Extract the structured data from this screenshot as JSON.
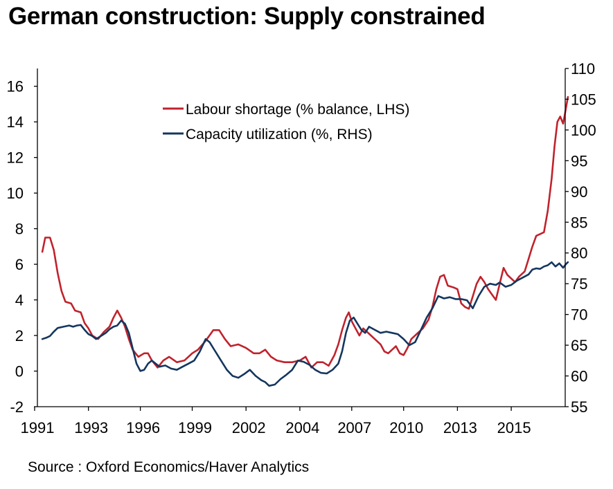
{
  "title": "German construction: Supply constrained",
  "source": "Source : Oxford Economics/Haver Analytics",
  "colors": {
    "labour": "#C0222C",
    "capacity": "#14365E",
    "axis": "#000000"
  },
  "chart_data": {
    "type": "line",
    "title": "German construction: Supply constrained",
    "grid": false,
    "legend_position": "top-center",
    "x_range": [
      1991.0,
      2018.5
    ],
    "x_tick_labels": [
      "1991",
      "1993",
      "1996",
      "1999",
      "2002",
      "2004",
      "2007",
      "2010",
      "2013",
      "2015"
    ],
    "x_tick_values": [
      1991.0,
      1993.8,
      1996.5,
      1999.2,
      2002.0,
      2004.8,
      2007.5,
      2010.2,
      2013.0,
      2015.8
    ],
    "y_left": {
      "range": [
        -2,
        17
      ],
      "ticks": [
        -2,
        0,
        2,
        4,
        6,
        8,
        10,
        12,
        14,
        16
      ]
    },
    "y_right": {
      "range": [
        55,
        110
      ],
      "ticks": [
        55,
        60,
        65,
        70,
        75,
        80,
        85,
        90,
        95,
        100,
        105,
        110
      ]
    },
    "series": [
      {
        "name": "Labour shortage (% balance, LHS)",
        "axis": "left",
        "points": [
          [
            1991.4,
            6.7
          ],
          [
            1991.55,
            7.5
          ],
          [
            1991.8,
            7.5
          ],
          [
            1992.0,
            6.8
          ],
          [
            1992.2,
            5.5
          ],
          [
            1992.4,
            4.5
          ],
          [
            1992.6,
            3.9
          ],
          [
            1992.9,
            3.8
          ],
          [
            1993.1,
            3.4
          ],
          [
            1993.4,
            3.3
          ],
          [
            1993.6,
            2.7
          ],
          [
            1993.8,
            2.4
          ],
          [
            1994.0,
            2.0
          ],
          [
            1994.3,
            1.8
          ],
          [
            1994.6,
            2.2
          ],
          [
            1994.9,
            2.5
          ],
          [
            1995.1,
            3.0
          ],
          [
            1995.3,
            3.4
          ],
          [
            1995.5,
            3.0
          ],
          [
            1995.7,
            2.5
          ],
          [
            1995.9,
            1.8
          ],
          [
            1996.1,
            1.2
          ],
          [
            1996.4,
            0.8
          ],
          [
            1996.7,
            1.0
          ],
          [
            1996.9,
            1.0
          ],
          [
            1997.1,
            0.6
          ],
          [
            1997.4,
            0.2
          ],
          [
            1997.7,
            0.6
          ],
          [
            1998.0,
            0.8
          ],
          [
            1998.4,
            0.5
          ],
          [
            1998.8,
            0.6
          ],
          [
            1999.2,
            1.0
          ],
          [
            1999.5,
            1.2
          ],
          [
            1999.9,
            1.7
          ],
          [
            2000.3,
            2.3
          ],
          [
            2000.6,
            2.3
          ],
          [
            2000.9,
            1.8
          ],
          [
            2001.2,
            1.4
          ],
          [
            2001.6,
            1.5
          ],
          [
            2002.0,
            1.3
          ],
          [
            2002.4,
            1.0
          ],
          [
            2002.7,
            1.0
          ],
          [
            2003.0,
            1.2
          ],
          [
            2003.3,
            0.8
          ],
          [
            2003.6,
            0.6
          ],
          [
            2004.0,
            0.5
          ],
          [
            2004.4,
            0.5
          ],
          [
            2004.8,
            0.6
          ],
          [
            2005.1,
            0.8
          ],
          [
            2005.4,
            0.2
          ],
          [
            2005.7,
            0.5
          ],
          [
            2006.0,
            0.5
          ],
          [
            2006.3,
            0.3
          ],
          [
            2006.6,
            0.9
          ],
          [
            2006.8,
            1.5
          ],
          [
            2007.0,
            2.3
          ],
          [
            2007.2,
            3.0
          ],
          [
            2007.35,
            3.3
          ],
          [
            2007.5,
            2.8
          ],
          [
            2007.7,
            2.4
          ],
          [
            2007.9,
            2.0
          ],
          [
            2008.1,
            2.4
          ],
          [
            2008.4,
            2.1
          ],
          [
            2008.7,
            1.8
          ],
          [
            2009.0,
            1.5
          ],
          [
            2009.2,
            1.1
          ],
          [
            2009.4,
            1.0
          ],
          [
            2009.6,
            1.2
          ],
          [
            2009.8,
            1.4
          ],
          [
            2010.0,
            1.0
          ],
          [
            2010.2,
            0.9
          ],
          [
            2010.4,
            1.3
          ],
          [
            2010.6,
            1.8
          ],
          [
            2010.9,
            2.1
          ],
          [
            2011.2,
            2.4
          ],
          [
            2011.5,
            2.9
          ],
          [
            2011.7,
            3.6
          ],
          [
            2011.9,
            4.6
          ],
          [
            2012.1,
            5.3
          ],
          [
            2012.3,
            5.4
          ],
          [
            2012.5,
            4.8
          ],
          [
            2012.8,
            4.7
          ],
          [
            2013.0,
            4.6
          ],
          [
            2013.2,
            3.8
          ],
          [
            2013.4,
            3.6
          ],
          [
            2013.6,
            3.5
          ],
          [
            2013.8,
            4.2
          ],
          [
            2014.0,
            4.9
          ],
          [
            2014.2,
            5.3
          ],
          [
            2014.4,
            5.0
          ],
          [
            2014.6,
            4.6
          ],
          [
            2014.8,
            4.3
          ],
          [
            2015.0,
            4.0
          ],
          [
            2015.2,
            4.9
          ],
          [
            2015.4,
            5.8
          ],
          [
            2015.6,
            5.4
          ],
          [
            2015.8,
            5.2
          ],
          [
            2016.0,
            5.0
          ],
          [
            2016.2,
            5.3
          ],
          [
            2016.5,
            5.6
          ],
          [
            2016.7,
            6.3
          ],
          [
            2016.9,
            7.0
          ],
          [
            2017.1,
            7.6
          ],
          [
            2017.3,
            7.7
          ],
          [
            2017.5,
            7.8
          ],
          [
            2017.7,
            9.0
          ],
          [
            2017.9,
            10.8
          ],
          [
            2018.05,
            12.6
          ],
          [
            2018.2,
            14.0
          ],
          [
            2018.35,
            14.3
          ],
          [
            2018.5,
            13.9
          ],
          [
            2018.62,
            14.6
          ],
          [
            2018.75,
            15.4
          ]
        ]
      },
      {
        "name": "Capacity utilization (%, RHS)",
        "axis": "right",
        "points": [
          [
            1991.4,
            66.0
          ],
          [
            1991.6,
            66.2
          ],
          [
            1991.8,
            66.5
          ],
          [
            1992.0,
            67.2
          ],
          [
            1992.2,
            67.8
          ],
          [
            1992.5,
            68.0
          ],
          [
            1992.8,
            68.2
          ],
          [
            1993.0,
            68.0
          ],
          [
            1993.2,
            68.2
          ],
          [
            1993.4,
            68.3
          ],
          [
            1993.6,
            67.5
          ],
          [
            1993.8,
            66.8
          ],
          [
            1994.0,
            66.5
          ],
          [
            1994.2,
            66.0
          ],
          [
            1994.5,
            66.6
          ],
          [
            1994.7,
            67.0
          ],
          [
            1994.9,
            67.6
          ],
          [
            1995.1,
            68.0
          ],
          [
            1995.3,
            68.2
          ],
          [
            1995.5,
            69.0
          ],
          [
            1995.7,
            68.5
          ],
          [
            1995.9,
            67.0
          ],
          [
            1996.1,
            64.5
          ],
          [
            1996.3,
            62.0
          ],
          [
            1996.5,
            60.8
          ],
          [
            1996.7,
            61.0
          ],
          [
            1996.9,
            62.0
          ],
          [
            1997.1,
            62.5
          ],
          [
            1997.3,
            62.0
          ],
          [
            1997.5,
            61.5
          ],
          [
            1997.8,
            61.7
          ],
          [
            1998.1,
            61.2
          ],
          [
            1998.4,
            61.0
          ],
          [
            1998.7,
            61.5
          ],
          [
            1999.0,
            62.0
          ],
          [
            1999.3,
            62.5
          ],
          [
            1999.6,
            64.0
          ],
          [
            1999.9,
            66.0
          ],
          [
            2000.1,
            65.5
          ],
          [
            2000.4,
            64.0
          ],
          [
            2000.7,
            62.5
          ],
          [
            2001.0,
            61.0
          ],
          [
            2001.3,
            60.0
          ],
          [
            2001.6,
            59.7
          ],
          [
            2001.9,
            60.3
          ],
          [
            2002.2,
            61.0
          ],
          [
            2002.5,
            60.0
          ],
          [
            2002.8,
            59.3
          ],
          [
            2003.0,
            59.0
          ],
          [
            2003.2,
            58.4
          ],
          [
            2003.5,
            58.6
          ],
          [
            2003.8,
            59.5
          ],
          [
            2004.1,
            60.2
          ],
          [
            2004.4,
            61.0
          ],
          [
            2004.7,
            62.5
          ],
          [
            2005.0,
            62.3
          ],
          [
            2005.3,
            61.8
          ],
          [
            2005.6,
            61.0
          ],
          [
            2005.9,
            60.5
          ],
          [
            2006.2,
            60.4
          ],
          [
            2006.5,
            61.0
          ],
          [
            2006.8,
            62.0
          ],
          [
            2007.0,
            64.0
          ],
          [
            2007.2,
            67.0
          ],
          [
            2007.4,
            69.0
          ],
          [
            2007.6,
            69.5
          ],
          [
            2007.8,
            68.5
          ],
          [
            2008.0,
            67.5
          ],
          [
            2008.2,
            67.0
          ],
          [
            2008.4,
            68.0
          ],
          [
            2008.7,
            67.5
          ],
          [
            2009.0,
            67.0
          ],
          [
            2009.3,
            67.2
          ],
          [
            2009.6,
            67.0
          ],
          [
            2009.9,
            66.8
          ],
          [
            2010.2,
            66.0
          ],
          [
            2010.5,
            65.0
          ],
          [
            2010.8,
            65.5
          ],
          [
            2011.1,
            67.5
          ],
          [
            2011.4,
            69.5
          ],
          [
            2011.7,
            71.0
          ],
          [
            2012.0,
            73.0
          ],
          [
            2012.3,
            72.6
          ],
          [
            2012.6,
            72.8
          ],
          [
            2012.9,
            72.5
          ],
          [
            2013.2,
            72.5
          ],
          [
            2013.5,
            72.3
          ],
          [
            2013.8,
            71.0
          ],
          [
            2014.1,
            73.0
          ],
          [
            2014.4,
            74.5
          ],
          [
            2014.7,
            75.0
          ],
          [
            2015.0,
            74.8
          ],
          [
            2015.2,
            75.2
          ],
          [
            2015.5,
            74.5
          ],
          [
            2015.8,
            74.8
          ],
          [
            2016.1,
            75.5
          ],
          [
            2016.4,
            76.0
          ],
          [
            2016.7,
            76.5
          ],
          [
            2016.9,
            77.3
          ],
          [
            2017.1,
            77.5
          ],
          [
            2017.3,
            77.4
          ],
          [
            2017.5,
            77.8
          ],
          [
            2017.7,
            78.0
          ],
          [
            2017.9,
            78.5
          ],
          [
            2018.1,
            77.8
          ],
          [
            2018.3,
            78.3
          ],
          [
            2018.5,
            77.6
          ],
          [
            2018.65,
            78.2
          ],
          [
            2018.75,
            78.5
          ]
        ]
      }
    ]
  }
}
